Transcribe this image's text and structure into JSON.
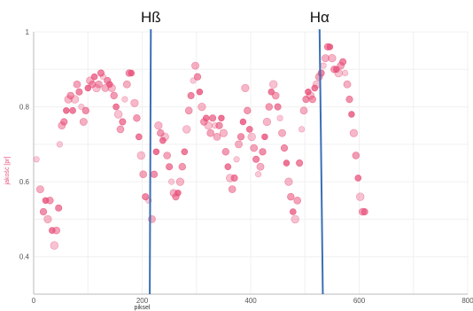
{
  "chart_data": {
    "type": "scatter",
    "xlabel": "piksel",
    "ylabel": "jakość [pr]",
    "xlim": [
      0,
      800
    ],
    "ylim": [
      0.3,
      1.0
    ],
    "x_ticks": [
      "0",
      "200",
      "400",
      "600",
      "800"
    ],
    "y_ticks": [
      "0.4",
      "0.6",
      "0.8",
      "1"
    ],
    "grid": "light-vertical-and-horizontal",
    "point_color": "#e8507a",
    "line_color": "#3a6fb5",
    "vertical_lines": [
      {
        "label": "Hß",
        "x_top": 216,
        "x_bottom": 214
      },
      {
        "label": "Hα",
        "x_top": 527,
        "x_bottom": 533
      }
    ],
    "series": [
      {
        "points": [
          [
            5,
            0.66
          ],
          [
            12,
            0.58
          ],
          [
            18,
            0.52
          ],
          [
            22,
            0.55
          ],
          [
            26,
            0.5
          ],
          [
            30,
            0.55
          ],
          [
            34,
            0.47
          ],
          [
            38,
            0.43
          ],
          [
            42,
            0.47
          ],
          [
            46,
            0.53
          ],
          [
            48,
            0.7
          ],
          [
            52,
            0.75
          ],
          [
            56,
            0.76
          ],
          [
            60,
            0.79
          ],
          [
            64,
            0.82
          ],
          [
            68,
            0.83
          ],
          [
            72,
            0.79
          ],
          [
            76,
            0.82
          ],
          [
            80,
            0.86
          ],
          [
            84,
            0.84
          ],
          [
            88,
            0.8
          ],
          [
            92,
            0.76
          ],
          [
            96,
            0.79
          ],
          [
            100,
            0.85
          ],
          [
            104,
            0.87
          ],
          [
            108,
            0.86
          ],
          [
            112,
            0.88
          ],
          [
            116,
            0.85
          ],
          [
            120,
            0.86
          ],
          [
            124,
            0.89
          ],
          [
            128,
            0.88
          ],
          [
            132,
            0.85
          ],
          [
            136,
            0.87
          ],
          [
            140,
            0.86
          ],
          [
            144,
            0.85
          ],
          [
            148,
            0.83
          ],
          [
            152,
            0.8
          ],
          [
            156,
            0.78
          ],
          [
            160,
            0.74
          ],
          [
            164,
            0.76
          ],
          [
            168,
            0.82
          ],
          [
            172,
            0.86
          ],
          [
            176,
            0.89
          ],
          [
            180,
            0.89
          ],
          [
            186,
            0.81
          ],
          [
            190,
            0.77
          ],
          [
            194,
            0.72
          ],
          [
            198,
            0.67
          ],
          [
            202,
            0.62
          ],
          [
            206,
            0.56
          ],
          [
            212,
            0.55
          ],
          [
            218,
            0.5
          ],
          [
            222,
            0.62
          ],
          [
            226,
            0.68
          ],
          [
            230,
            0.75
          ],
          [
            234,
            0.73
          ],
          [
            238,
            0.71
          ],
          [
            242,
            0.72
          ],
          [
            246,
            0.67
          ],
          [
            250,
            0.64
          ],
          [
            254,
            0.6
          ],
          [
            258,
            0.57
          ],
          [
            262,
            0.56
          ],
          [
            266,
            0.57
          ],
          [
            270,
            0.6
          ],
          [
            274,
            0.64
          ],
          [
            278,
            0.68
          ],
          [
            282,
            0.74
          ],
          [
            286,
            0.79
          ],
          [
            290,
            0.83
          ],
          [
            294,
            0.87
          ],
          [
            298,
            0.91
          ],
          [
            302,
            0.88
          ],
          [
            306,
            0.84
          ],
          [
            310,
            0.8
          ],
          [
            314,
            0.76
          ],
          [
            318,
            0.77
          ],
          [
            322,
            0.75
          ],
          [
            326,
            0.73
          ],
          [
            330,
            0.77
          ],
          [
            334,
            0.75
          ],
          [
            338,
            0.72
          ],
          [
            342,
            0.75
          ],
          [
            346,
            0.77
          ],
          [
            350,
            0.73
          ],
          [
            354,
            0.68
          ],
          [
            358,
            0.64
          ],
          [
            362,
            0.61
          ],
          [
            366,
            0.58
          ],
          [
            370,
            0.61
          ],
          [
            374,
            0.66
          ],
          [
            378,
            0.7
          ],
          [
            382,
            0.72
          ],
          [
            386,
            0.76
          ],
          [
            390,
            0.85
          ],
          [
            394,
            0.79
          ],
          [
            398,
            0.74
          ],
          [
            402,
            0.72
          ],
          [
            406,
            0.69
          ],
          [
            410,
            0.66
          ],
          [
            414,
            0.62
          ],
          [
            418,
            0.64
          ],
          [
            422,
            0.68
          ],
          [
            426,
            0.72
          ],
          [
            430,
            0.76
          ],
          [
            434,
            0.8
          ],
          [
            438,
            0.84
          ],
          [
            442,
            0.86
          ],
          [
            446,
            0.83
          ],
          [
            450,
            0.8
          ],
          [
            454,
            0.77
          ],
          [
            458,
            0.73
          ],
          [
            462,
            0.69
          ],
          [
            466,
            0.65
          ],
          [
            470,
            0.6
          ],
          [
            474,
            0.56
          ],
          [
            478,
            0.52
          ],
          [
            482,
            0.5
          ],
          [
            486,
            0.55
          ],
          [
            490,
            0.65
          ],
          [
            494,
            0.74
          ],
          [
            498,
            0.79
          ],
          [
            502,
            0.82
          ],
          [
            506,
            0.84
          ],
          [
            510,
            0.83
          ],
          [
            514,
            0.82
          ],
          [
            518,
            0.85
          ],
          [
            522,
            0.86
          ],
          [
            526,
            0.88
          ],
          [
            530,
            0.89
          ],
          [
            534,
            0.91
          ],
          [
            538,
            0.93
          ],
          [
            542,
            0.96
          ],
          [
            546,
            0.96
          ],
          [
            550,
            0.93
          ],
          [
            554,
            0.9
          ],
          [
            558,
            0.9
          ],
          [
            562,
            0.89
          ],
          [
            566,
            0.91
          ],
          [
            570,
            0.92
          ],
          [
            574,
            0.89
          ],
          [
            578,
            0.86
          ],
          [
            582,
            0.82
          ],
          [
            586,
            0.78
          ],
          [
            590,
            0.73
          ],
          [
            594,
            0.67
          ],
          [
            598,
            0.61
          ],
          [
            602,
            0.56
          ],
          [
            606,
            0.52
          ],
          [
            610,
            0.52
          ]
        ]
      }
    ]
  }
}
